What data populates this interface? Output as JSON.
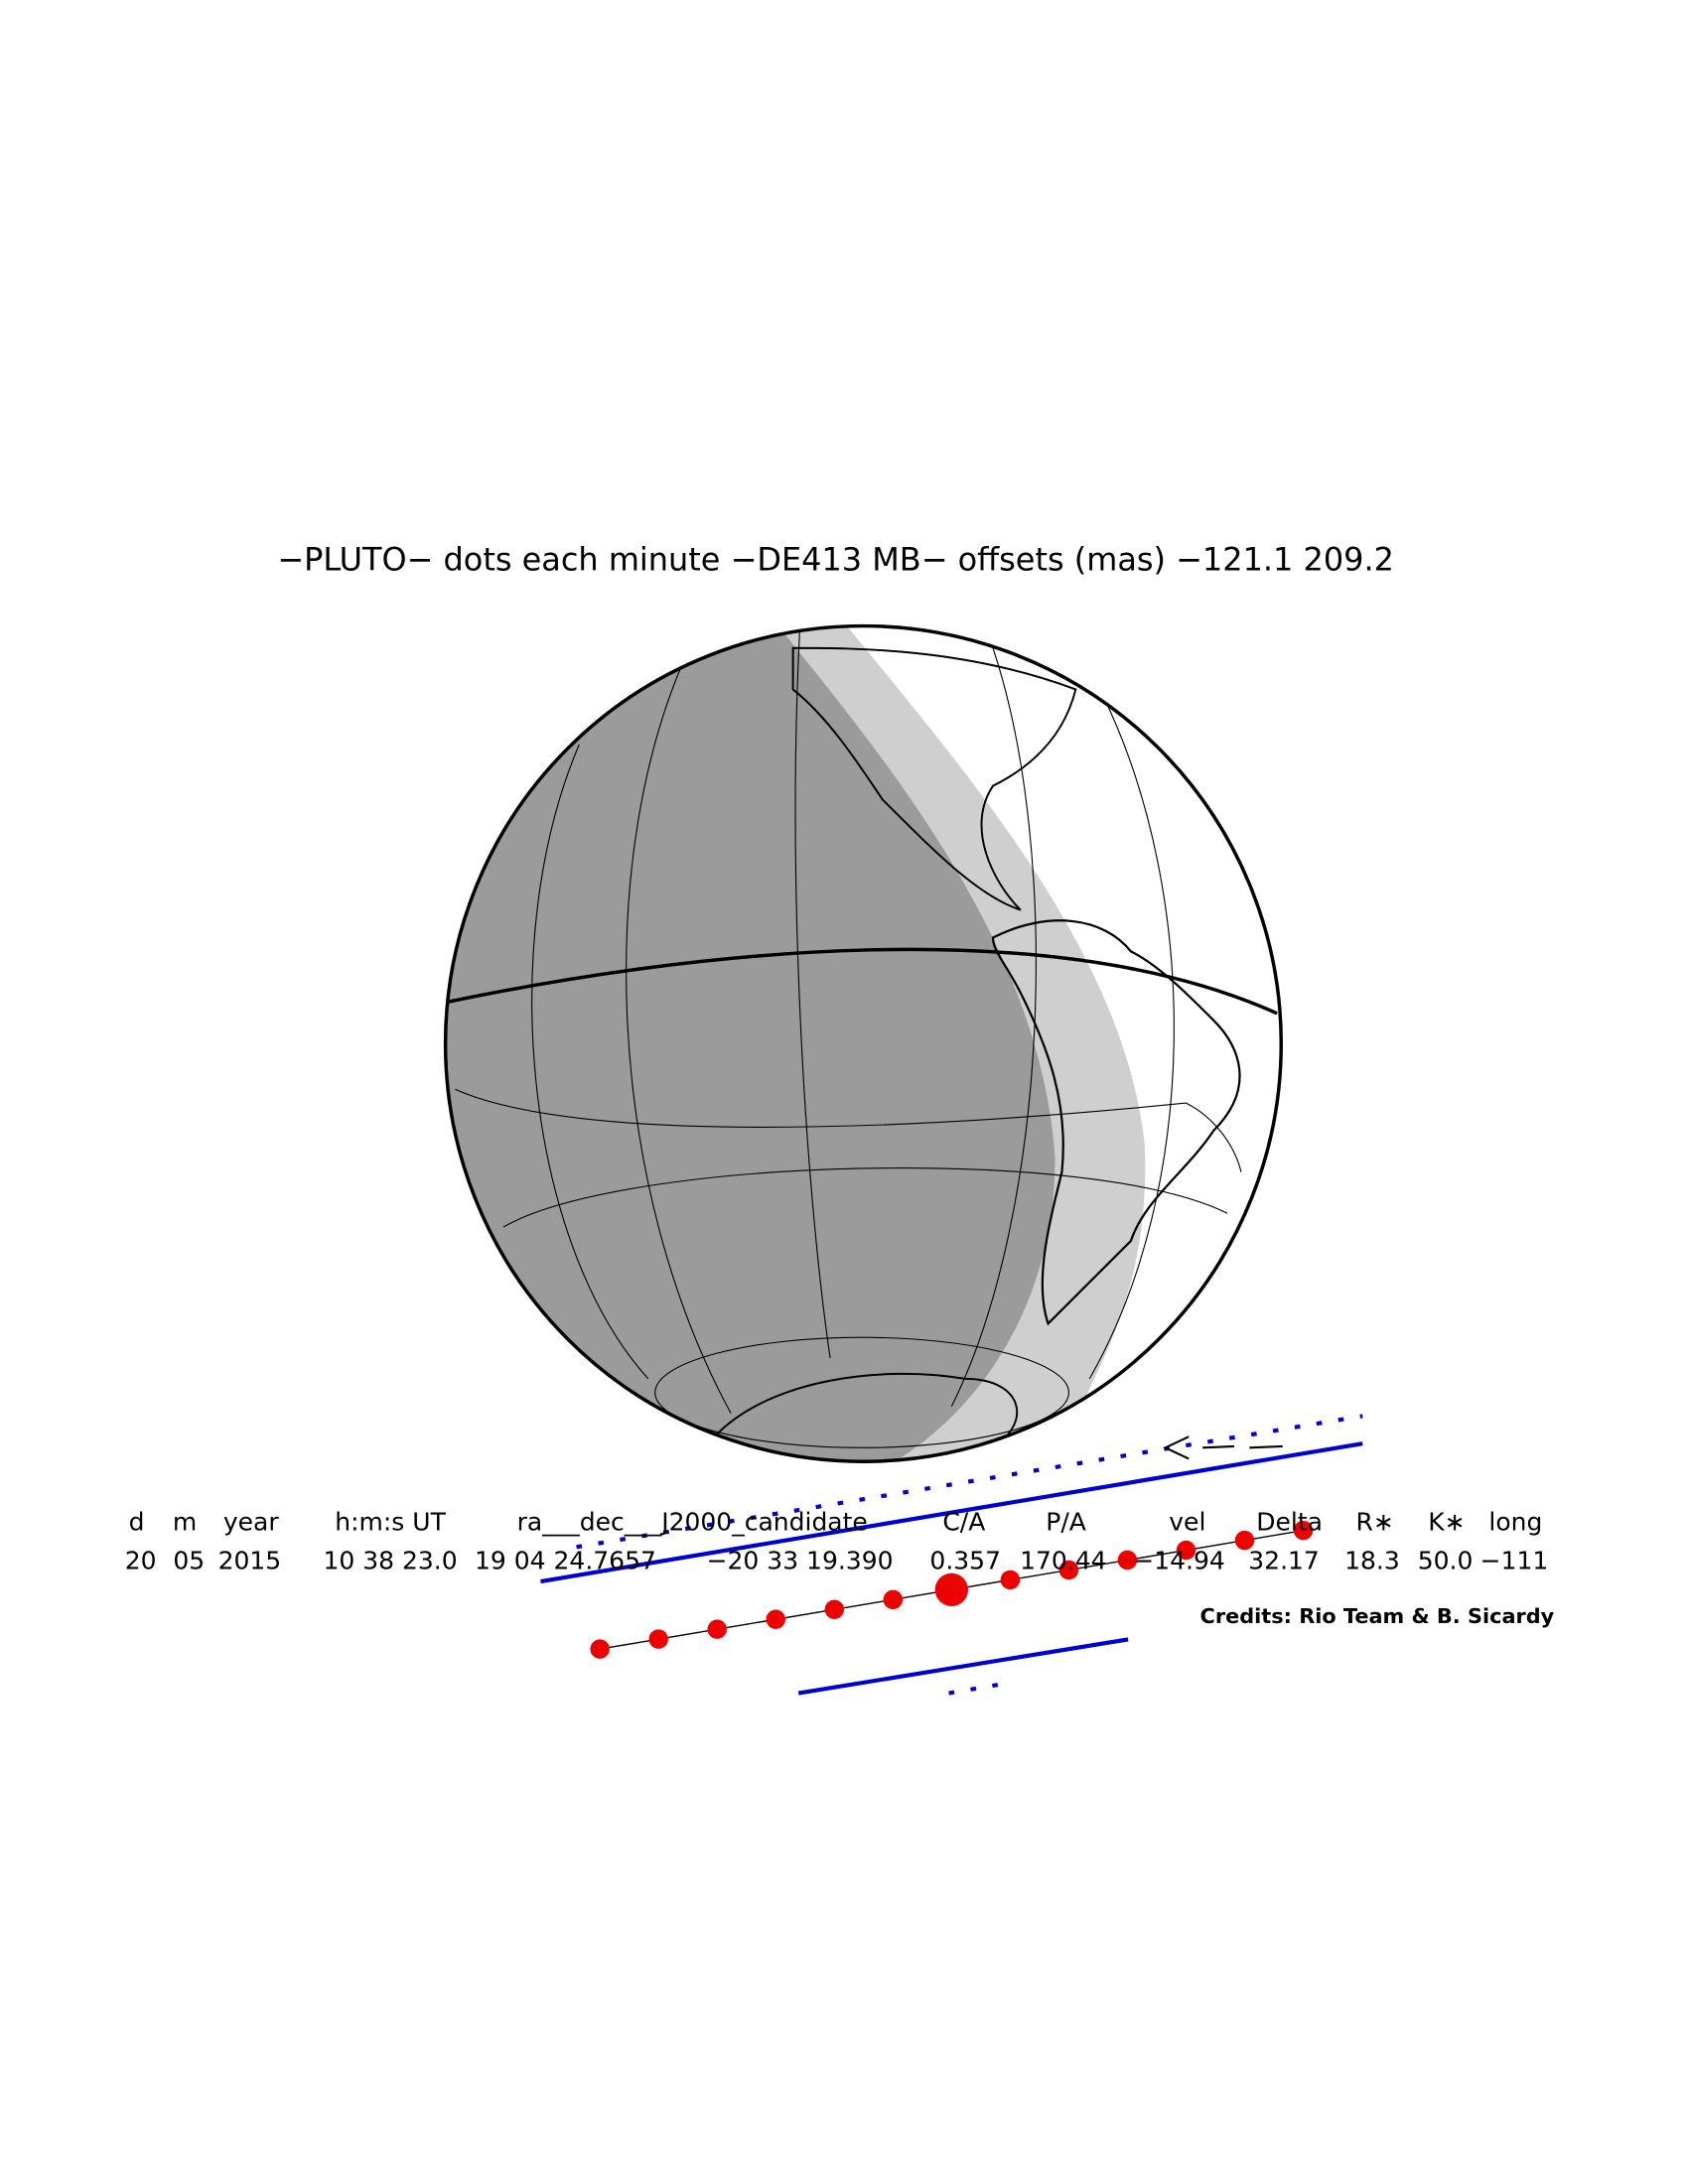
{
  "header": {
    "title": "−PLUTO− dots each minute −DE413 MB− offsets (mas) −121.1  209.2"
  },
  "table": {
    "headers": [
      "d",
      "m",
      "year",
      "h:m:s UT",
      "ra___dec___J2000_candidate",
      "C/A",
      "P/A",
      "vel",
      "Delta",
      "R∗",
      "K∗",
      "long"
    ],
    "values": [
      "20",
      "05",
      "2015",
      "10 38 23.0",
      "19 04 24.7657",
      "−20 33 19.390",
      "0.357",
      "170.44",
      "−14.94",
      "32.17",
      "18.3",
      "50.0",
      "−111"
    ]
  },
  "credits": "Credits: Rio Team & B. Sicardy"
}
